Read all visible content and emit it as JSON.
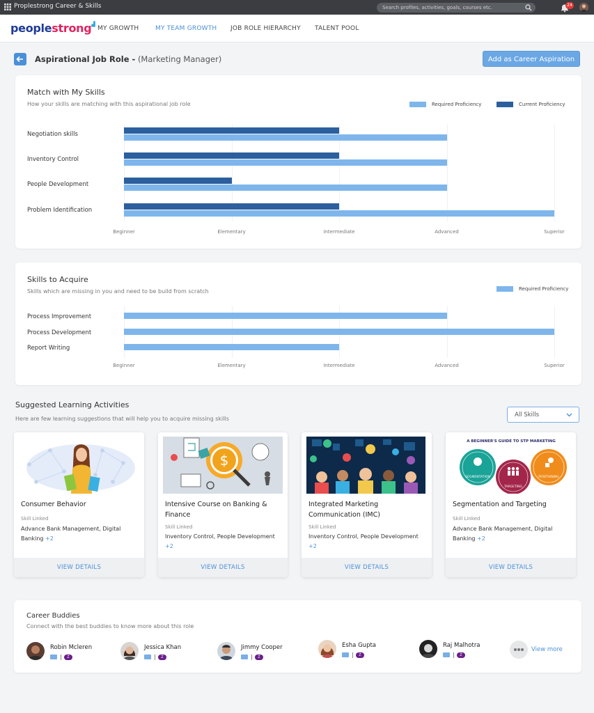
{
  "app": {
    "title": "Proplestrong Career & Skills",
    "search_placeholder": "Search profiles, activities, goals, courses etc.",
    "notification_count": "24"
  },
  "brand": {
    "part1": "people",
    "part2": "strong"
  },
  "nav": {
    "items": [
      {
        "label": "MY GROWTH",
        "active": false
      },
      {
        "label": "MY TEAM GROWTH",
        "active": true
      },
      {
        "label": "JOB ROLE HIERARCHY",
        "active": false
      },
      {
        "label": "TALENT POOL",
        "active": false
      }
    ]
  },
  "header": {
    "title": "Aspirational Job Role -",
    "role": "(Marketing Manager)",
    "action": "Add as Career Aspiration"
  },
  "match": {
    "title": "Match with My Skills",
    "subtitle": "How your skills are matching with this aspirational job role",
    "legend_required": "Required Proficiency",
    "legend_current": "Current Proficiency",
    "levels": [
      "Beginner",
      "Elementary",
      "Intermediate",
      "Advanced",
      "Superior"
    ],
    "skills": [
      {
        "name": "Negotiation skills",
        "current": 2,
        "required": 3
      },
      {
        "name": "Inventory Control",
        "current": 2,
        "required": 3
      },
      {
        "name": "People Development",
        "current": 1,
        "required": 3
      },
      {
        "name": "Problem Identification",
        "current": 2,
        "required": 4
      }
    ]
  },
  "acquire": {
    "title": "Skills to Acquire",
    "subtitle": "Skills which are missing in you and need to be build from scratch",
    "legend_required": "Required Proficiency",
    "levels": [
      "Beginner",
      "Elementary",
      "Intermediate",
      "Advanced",
      "Superior"
    ],
    "skills": [
      {
        "name": "Process Improvement",
        "required": 3
      },
      {
        "name": "Process Development",
        "required": 4
      },
      {
        "name": "Report Writing",
        "required": 2
      }
    ]
  },
  "learning": {
    "title": "Suggested Learning Activities",
    "subtitle": "Here are few learning suggestions that will help you to acquire missing skills",
    "filter": "All Skills",
    "skill_linked_label": "Skill Linked",
    "view_details": "VIEW DETAILS",
    "cards": [
      {
        "title": "Consumer Behavior",
        "skills": "Advance Bank Management, Digital Banking",
        "more": "+2"
      },
      {
        "title": "Intensive Course on Banking & Finance",
        "skills": "Inventory Control, People Development",
        "more": "+2"
      },
      {
        "title": "Integrated Marketing Communication (IMC)",
        "skills": "Inventory Control, People Development",
        "more": "+2"
      },
      {
        "title": "Segmentation and Targeting",
        "skills": "Advance Bank Management, Digital Banking",
        "more": "+2"
      }
    ],
    "stp_banner": "A BEGINNER'S GUIDE TO STP MARKETING",
    "stp_circles": [
      "SEGMENTATION",
      "TARGETING",
      "POSITIONING"
    ]
  },
  "buddies": {
    "title": "Career Buddies",
    "subtitle": "Connect with the best buddies to know more about this role",
    "people": [
      {
        "name": "Robin Mcleren"
      },
      {
        "name": "Jessica Khan"
      },
      {
        "name": "Jimmy Cooper"
      },
      {
        "name": "Esha Gupta"
      },
      {
        "name": "Raj Malhotra"
      }
    ],
    "view_more": "View more",
    "z_label": "Z"
  },
  "colors": {
    "required": "#7eb6ec",
    "current": "#2c5f9e",
    "accent": "#4a90d9"
  }
}
